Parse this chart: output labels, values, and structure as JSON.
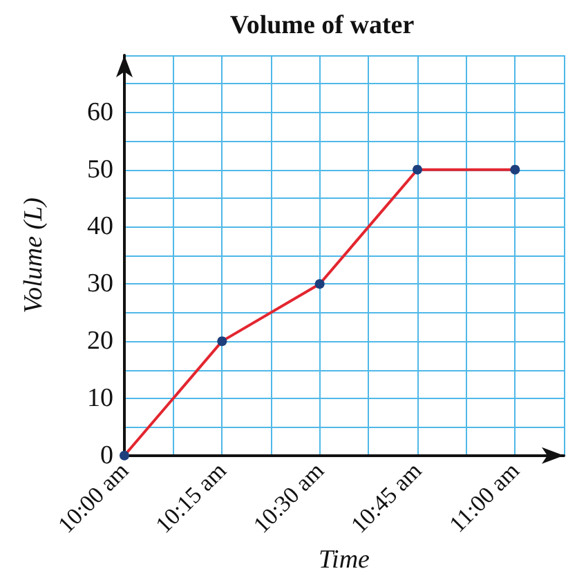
{
  "chart_data": {
    "type": "line",
    "title": "Volume of water",
    "xlabel": "Time",
    "ylabel": "Volume (L)",
    "x": [
      10,
      10.25,
      10.5,
      10.75,
      11
    ],
    "series": [
      {
        "color": "#e32630",
        "values": [
          0,
          20,
          30,
          50,
          50
        ]
      }
    ],
    "xlim": [
      10,
      11.125
    ],
    "xticks": [
      {
        "value": 10,
        "label": "10:00 am"
      },
      {
        "value": 10.125,
        "label": null
      },
      {
        "value": 10.25,
        "label": "10:15 am"
      },
      {
        "value": 10.375,
        "label": null
      },
      {
        "value": 10.5,
        "label": "10:30 am"
      },
      {
        "value": 10.625,
        "label": null
      },
      {
        "value": 10.75,
        "label": "10:45 am"
      },
      {
        "value": 10.875,
        "label": null
      },
      {
        "value": 11,
        "label": "11:00 am"
      }
    ],
    "ylim": [
      0,
      70
    ],
    "yticks": [
      0,
      {
        "value": 5,
        "label": null
      },
      10,
      {
        "value": 15,
        "label": null
      },
      20,
      {
        "value": 25,
        "label": null
      },
      30,
      {
        "value": 35,
        "label": null
      },
      40,
      {
        "value": 45,
        "label": null
      },
      50,
      {
        "value": 55,
        "label": null
      },
      60,
      {
        "value": 65,
        "label": null
      }
    ],
    "grid": true,
    "marker": "circle",
    "line_style": "solid"
  }
}
